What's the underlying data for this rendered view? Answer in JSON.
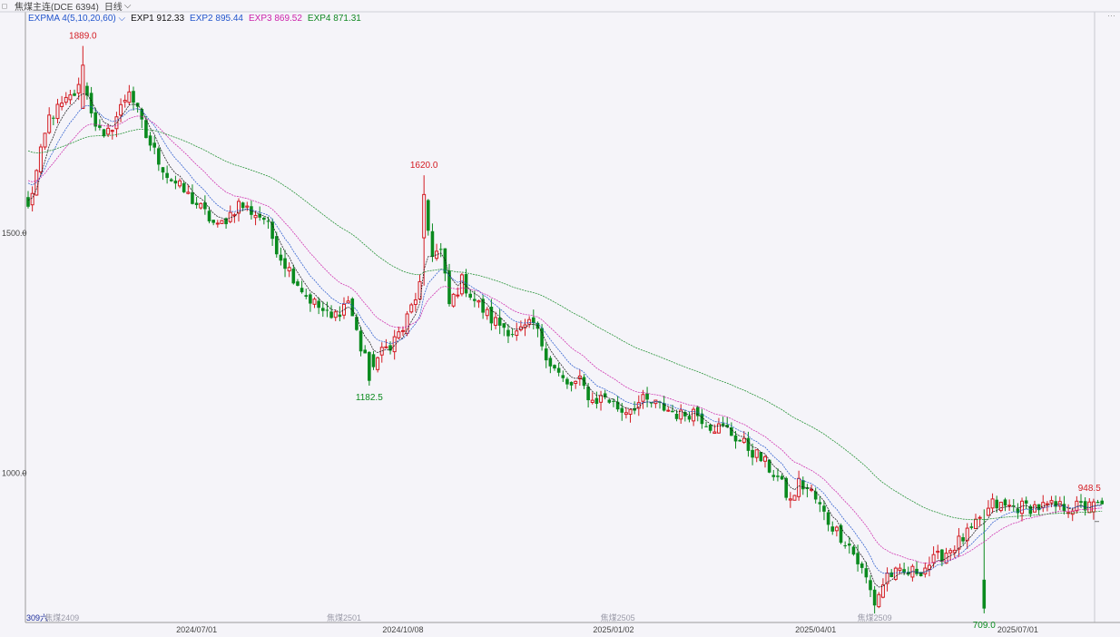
{
  "toolbar": {
    "contract": "焦煤主连(DCE 6394)",
    "period": "日线",
    "period_arrow": "⌵"
  },
  "legend": {
    "indicator": "EXPMA 4(5,10,20,60)",
    "arrow": "⌵",
    "items": [
      {
        "label": "EXP1 912.33",
        "color": "#111111"
      },
      {
        "label": "EXP2 895.44",
        "color": "#2255cc"
      },
      {
        "label": "EXP3 869.52",
        "color": "#cc22aa"
      },
      {
        "label": "EXP4 871.31",
        "color": "#118822"
      }
    ]
  },
  "colors": {
    "up": "#d31b22",
    "down": "#0a8a1e",
    "background": "#f5f4f9",
    "axis": "#888888"
  },
  "chart_data": {
    "type": "candlestick",
    "y_axis": {
      "ticks": [
        1500.0,
        1000.0
      ],
      "tick_labels": [
        "1500.0",
        "1000.0"
      ],
      "range": [
        690,
        1960
      ]
    },
    "x_axis": {
      "labels": [
        "2024/07/01",
        "2024/10/08",
        "2025/01/02",
        "2025/04/01",
        "2025/07/01"
      ],
      "label_index": [
        40,
        89,
        139,
        187,
        235
      ]
    },
    "contract_watermarks": [
      "焦煤2409",
      "焦煤2501",
      "焦煤2505",
      "焦煤2509"
    ],
    "bottom_left_label": "309六",
    "annotations": [
      {
        "label": "1889.0",
        "index": 13,
        "value": 1889.0,
        "kind": "high",
        "color": "#d31b22"
      },
      {
        "label": "1620.0",
        "index": 94,
        "value": 1620.0,
        "kind": "high",
        "color": "#d31b22"
      },
      {
        "label": "1182.5",
        "index": 81,
        "value": 1182.5,
        "kind": "low",
        "color": "#0a8a1e"
      },
      {
        "label": "709.0",
        "index": 227,
        "value": 709.0,
        "kind": "low",
        "color": "#0a8a1e"
      },
      {
        "label": "948.5",
        "index": 252,
        "value": 948.5,
        "kind": "high",
        "color": "#d31b22"
      }
    ],
    "close_path_anchors": [
      [
        0,
        1550
      ],
      [
        5,
        1740
      ],
      [
        10,
        1780
      ],
      [
        13,
        1810
      ],
      [
        16,
        1730
      ],
      [
        18,
        1690
      ],
      [
        22,
        1760
      ],
      [
        24,
        1800
      ],
      [
        28,
        1700
      ],
      [
        33,
        1620
      ],
      [
        40,
        1560
      ],
      [
        45,
        1510
      ],
      [
        50,
        1560
      ],
      [
        56,
        1530
      ],
      [
        60,
        1450
      ],
      [
        66,
        1370
      ],
      [
        72,
        1320
      ],
      [
        76,
        1360
      ],
      [
        79,
        1260
      ],
      [
        82,
        1230
      ],
      [
        86,
        1270
      ],
      [
        89,
        1300
      ],
      [
        93,
        1390
      ],
      [
        94,
        1550
      ],
      [
        96,
        1460
      ],
      [
        98,
        1460
      ],
      [
        100,
        1350
      ],
      [
        103,
        1400
      ],
      [
        106,
        1360
      ],
      [
        110,
        1320
      ],
      [
        116,
        1290
      ],
      [
        120,
        1310
      ],
      [
        124,
        1230
      ],
      [
        128,
        1180
      ],
      [
        131,
        1190
      ],
      [
        134,
        1150
      ],
      [
        137,
        1160
      ],
      [
        141,
        1130
      ],
      [
        146,
        1150
      ],
      [
        150,
        1140
      ],
      [
        155,
        1120
      ],
      [
        158,
        1130
      ],
      [
        162,
        1100
      ],
      [
        166,
        1090
      ],
      [
        170,
        1060
      ],
      [
        174,
        1030
      ],
      [
        178,
        990
      ],
      [
        181,
        940
      ],
      [
        183,
        980
      ],
      [
        186,
        960
      ],
      [
        190,
        900
      ],
      [
        195,
        850
      ],
      [
        199,
        780
      ],
      [
        201,
        730
      ],
      [
        204,
        790
      ],
      [
        208,
        790
      ],
      [
        212,
        800
      ],
      [
        217,
        830
      ],
      [
        220,
        850
      ],
      [
        224,
        880
      ],
      [
        227,
        910
      ],
      [
        229,
        935
      ],
      [
        232,
        930
      ]
    ],
    "series": [
      {
        "name": "EXP1",
        "period": 5,
        "color": "#111111",
        "last": 912.33
      },
      {
        "name": "EXP2",
        "period": 10,
        "color": "#2255cc",
        "last": 895.44
      },
      {
        "name": "EXP3",
        "period": 20,
        "color": "#cc22aa",
        "last": 869.52
      },
      {
        "name": "EXP4",
        "period": 60,
        "color": "#118822",
        "last": 871.31
      }
    ]
  }
}
